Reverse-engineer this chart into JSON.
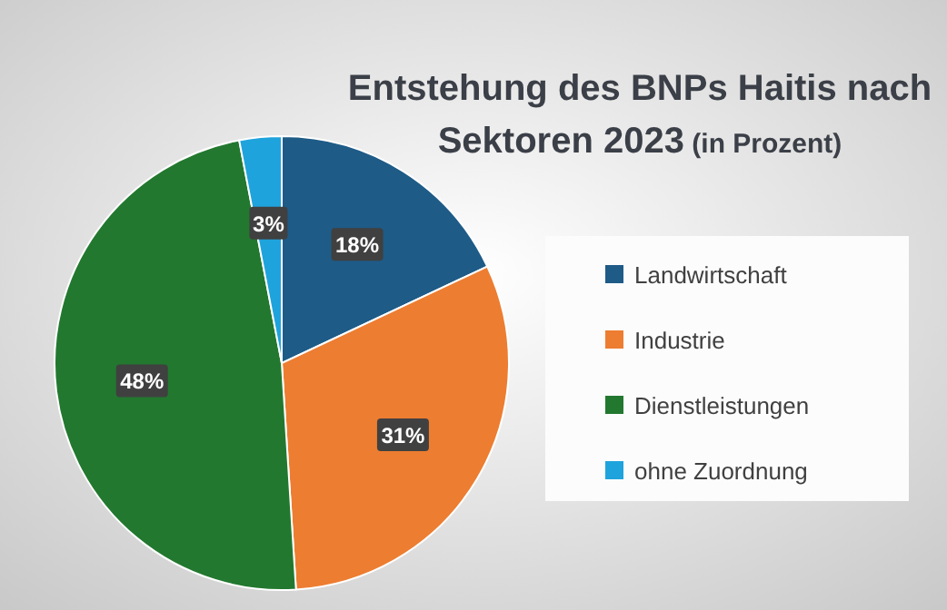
{
  "chart_data": {
    "type": "pie",
    "title": "Entstehung des BNPs Haitis nach Sektoren 2023",
    "subtitle": "(in Prozent)",
    "categories": [
      "Landwirtschaft",
      "Industrie",
      "Dienstleistungen",
      "ohne Zuordnung"
    ],
    "values": [
      18,
      31,
      48,
      3
    ],
    "colors": [
      "#1e5b87",
      "#ed7d31",
      "#22782f",
      "#1fa3dc"
    ],
    "value_labels": [
      "18%",
      "31%",
      "48%",
      "3%"
    ],
    "legend": "right"
  }
}
